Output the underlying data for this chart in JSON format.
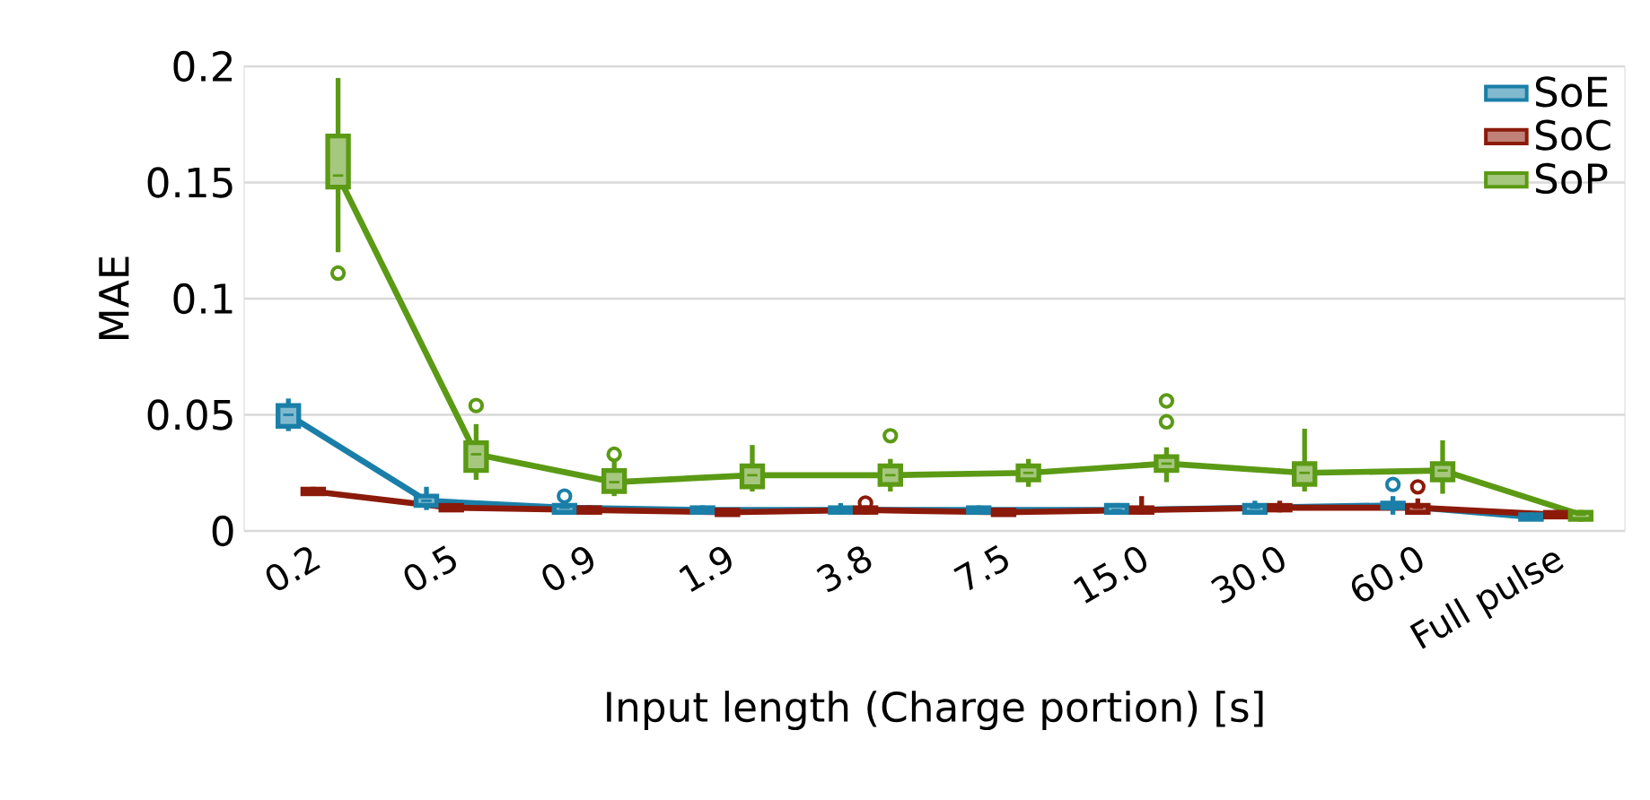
{
  "chart_data": {
    "type": "box",
    "xlabel": "Input length (Charge portion) [s]",
    "ylabel": "MAE",
    "categories": [
      "0.2",
      "0.5",
      "0.9",
      "1.9",
      "3.8",
      "7.5",
      "15.0",
      "30.0",
      "60.0",
      "Full pulse"
    ],
    "ylim": [
      0,
      0.2
    ],
    "yticks": [
      0,
      0.05,
      0.1,
      0.15,
      0.2
    ],
    "grid": "y",
    "legend": "top right",
    "series": [
      {
        "name": "SoE",
        "color": "#1a7fa8",
        "boxes": [
          {
            "low": 0.043,
            "q1": 0.045,
            "median": 0.05,
            "q3": 0.054,
            "high": 0.057
          },
          {
            "low": 0.009,
            "q1": 0.011,
            "median": 0.013,
            "q3": 0.015,
            "high": 0.019
          },
          {
            "low": 0.007,
            "q1": 0.008,
            "median": 0.01,
            "q3": 0.011,
            "high": 0.012,
            "outliers": [
              0.015
            ]
          },
          {
            "low": 0.007,
            "q1": 0.008,
            "median": 0.009,
            "q3": 0.01,
            "high": 0.011
          },
          {
            "low": 0.007,
            "q1": 0.008,
            "median": 0.009,
            "q3": 0.01,
            "high": 0.012
          },
          {
            "low": 0.007,
            "q1": 0.008,
            "median": 0.009,
            "q3": 0.01,
            "high": 0.011
          },
          {
            "low": 0.007,
            "q1": 0.008,
            "median": 0.009,
            "q3": 0.011,
            "high": 0.012
          },
          {
            "low": 0.007,
            "q1": 0.008,
            "median": 0.01,
            "q3": 0.011,
            "high": 0.013
          },
          {
            "low": 0.007,
            "q1": 0.01,
            "median": 0.011,
            "q3": 0.012,
            "high": 0.015,
            "outliers": [
              0.02
            ]
          },
          {
            "low": 0.005,
            "q1": 0.005,
            "median": 0.006,
            "q3": 0.007,
            "high": 0.008
          }
        ]
      },
      {
        "name": "SoC",
        "color": "#8b1a0a",
        "boxes": [
          {
            "low": 0.016,
            "q1": 0.016,
            "median": 0.017,
            "q3": 0.018,
            "high": 0.019
          },
          {
            "low": 0.009,
            "q1": 0.009,
            "median": 0.01,
            "q3": 0.011,
            "high": 0.012
          },
          {
            "low": 0.007,
            "q1": 0.008,
            "median": 0.009,
            "q3": 0.01,
            "high": 0.011
          },
          {
            "low": 0.007,
            "q1": 0.007,
            "median": 0.008,
            "q3": 0.009,
            "high": 0.01
          },
          {
            "low": 0.007,
            "q1": 0.008,
            "median": 0.009,
            "q3": 0.01,
            "high": 0.011,
            "outliers": [
              0.012
            ]
          },
          {
            "low": 0.007,
            "q1": 0.007,
            "median": 0.008,
            "q3": 0.009,
            "high": 0.01
          },
          {
            "low": 0.007,
            "q1": 0.008,
            "median": 0.009,
            "q3": 0.01,
            "high": 0.015
          },
          {
            "low": 0.008,
            "q1": 0.009,
            "median": 0.01,
            "q3": 0.011,
            "high": 0.013
          },
          {
            "low": 0.008,
            "q1": 0.008,
            "median": 0.01,
            "q3": 0.011,
            "high": 0.014,
            "outliers": [
              0.019
            ]
          },
          {
            "low": 0.006,
            "q1": 0.006,
            "median": 0.007,
            "q3": 0.008,
            "high": 0.009
          }
        ]
      },
      {
        "name": "SoP",
        "color": "#5b9a14",
        "boxes": [
          {
            "low": 0.12,
            "q1": 0.148,
            "median": 0.153,
            "q3": 0.17,
            "high": 0.195,
            "outliers": [
              0.111
            ]
          },
          {
            "low": 0.022,
            "q1": 0.026,
            "median": 0.033,
            "q3": 0.038,
            "high": 0.046,
            "outliers": [
              0.054
            ]
          },
          {
            "low": 0.015,
            "q1": 0.017,
            "median": 0.021,
            "q3": 0.026,
            "high": 0.03,
            "outliers": [
              0.033
            ]
          },
          {
            "low": 0.017,
            "q1": 0.019,
            "median": 0.024,
            "q3": 0.028,
            "high": 0.037
          },
          {
            "low": 0.017,
            "q1": 0.02,
            "median": 0.024,
            "q3": 0.028,
            "high": 0.031,
            "outliers": [
              0.041
            ]
          },
          {
            "low": 0.019,
            "q1": 0.022,
            "median": 0.025,
            "q3": 0.028,
            "high": 0.031
          },
          {
            "low": 0.021,
            "q1": 0.026,
            "median": 0.029,
            "q3": 0.032,
            "high": 0.036,
            "outliers": [
              0.047,
              0.056
            ]
          },
          {
            "low": 0.017,
            "q1": 0.02,
            "median": 0.025,
            "q3": 0.029,
            "high": 0.044
          },
          {
            "low": 0.016,
            "q1": 0.022,
            "median": 0.026,
            "q3": 0.029,
            "high": 0.039
          },
          {
            "low": 0.004,
            "q1": 0.005,
            "median": 0.007,
            "q3": 0.008,
            "high": 0.009
          }
        ]
      },
      {
        "type": "line",
        "color": "#1a7fa8",
        "values": [
          0.05,
          0.013,
          0.01,
          0.009,
          0.009,
          0.009,
          0.009,
          0.01,
          0.011,
          0.006
        ]
      },
      {
        "type": "line",
        "color": "#8b1a0a",
        "values": [
          0.017,
          0.01,
          0.009,
          0.008,
          0.009,
          0.008,
          0.009,
          0.01,
          0.01,
          0.007
        ]
      },
      {
        "type": "line",
        "color": "#5b9a14",
        "values": [
          0.153,
          0.033,
          0.021,
          0.024,
          0.024,
          0.025,
          0.029,
          0.025,
          0.026,
          0.007
        ]
      }
    ]
  }
}
